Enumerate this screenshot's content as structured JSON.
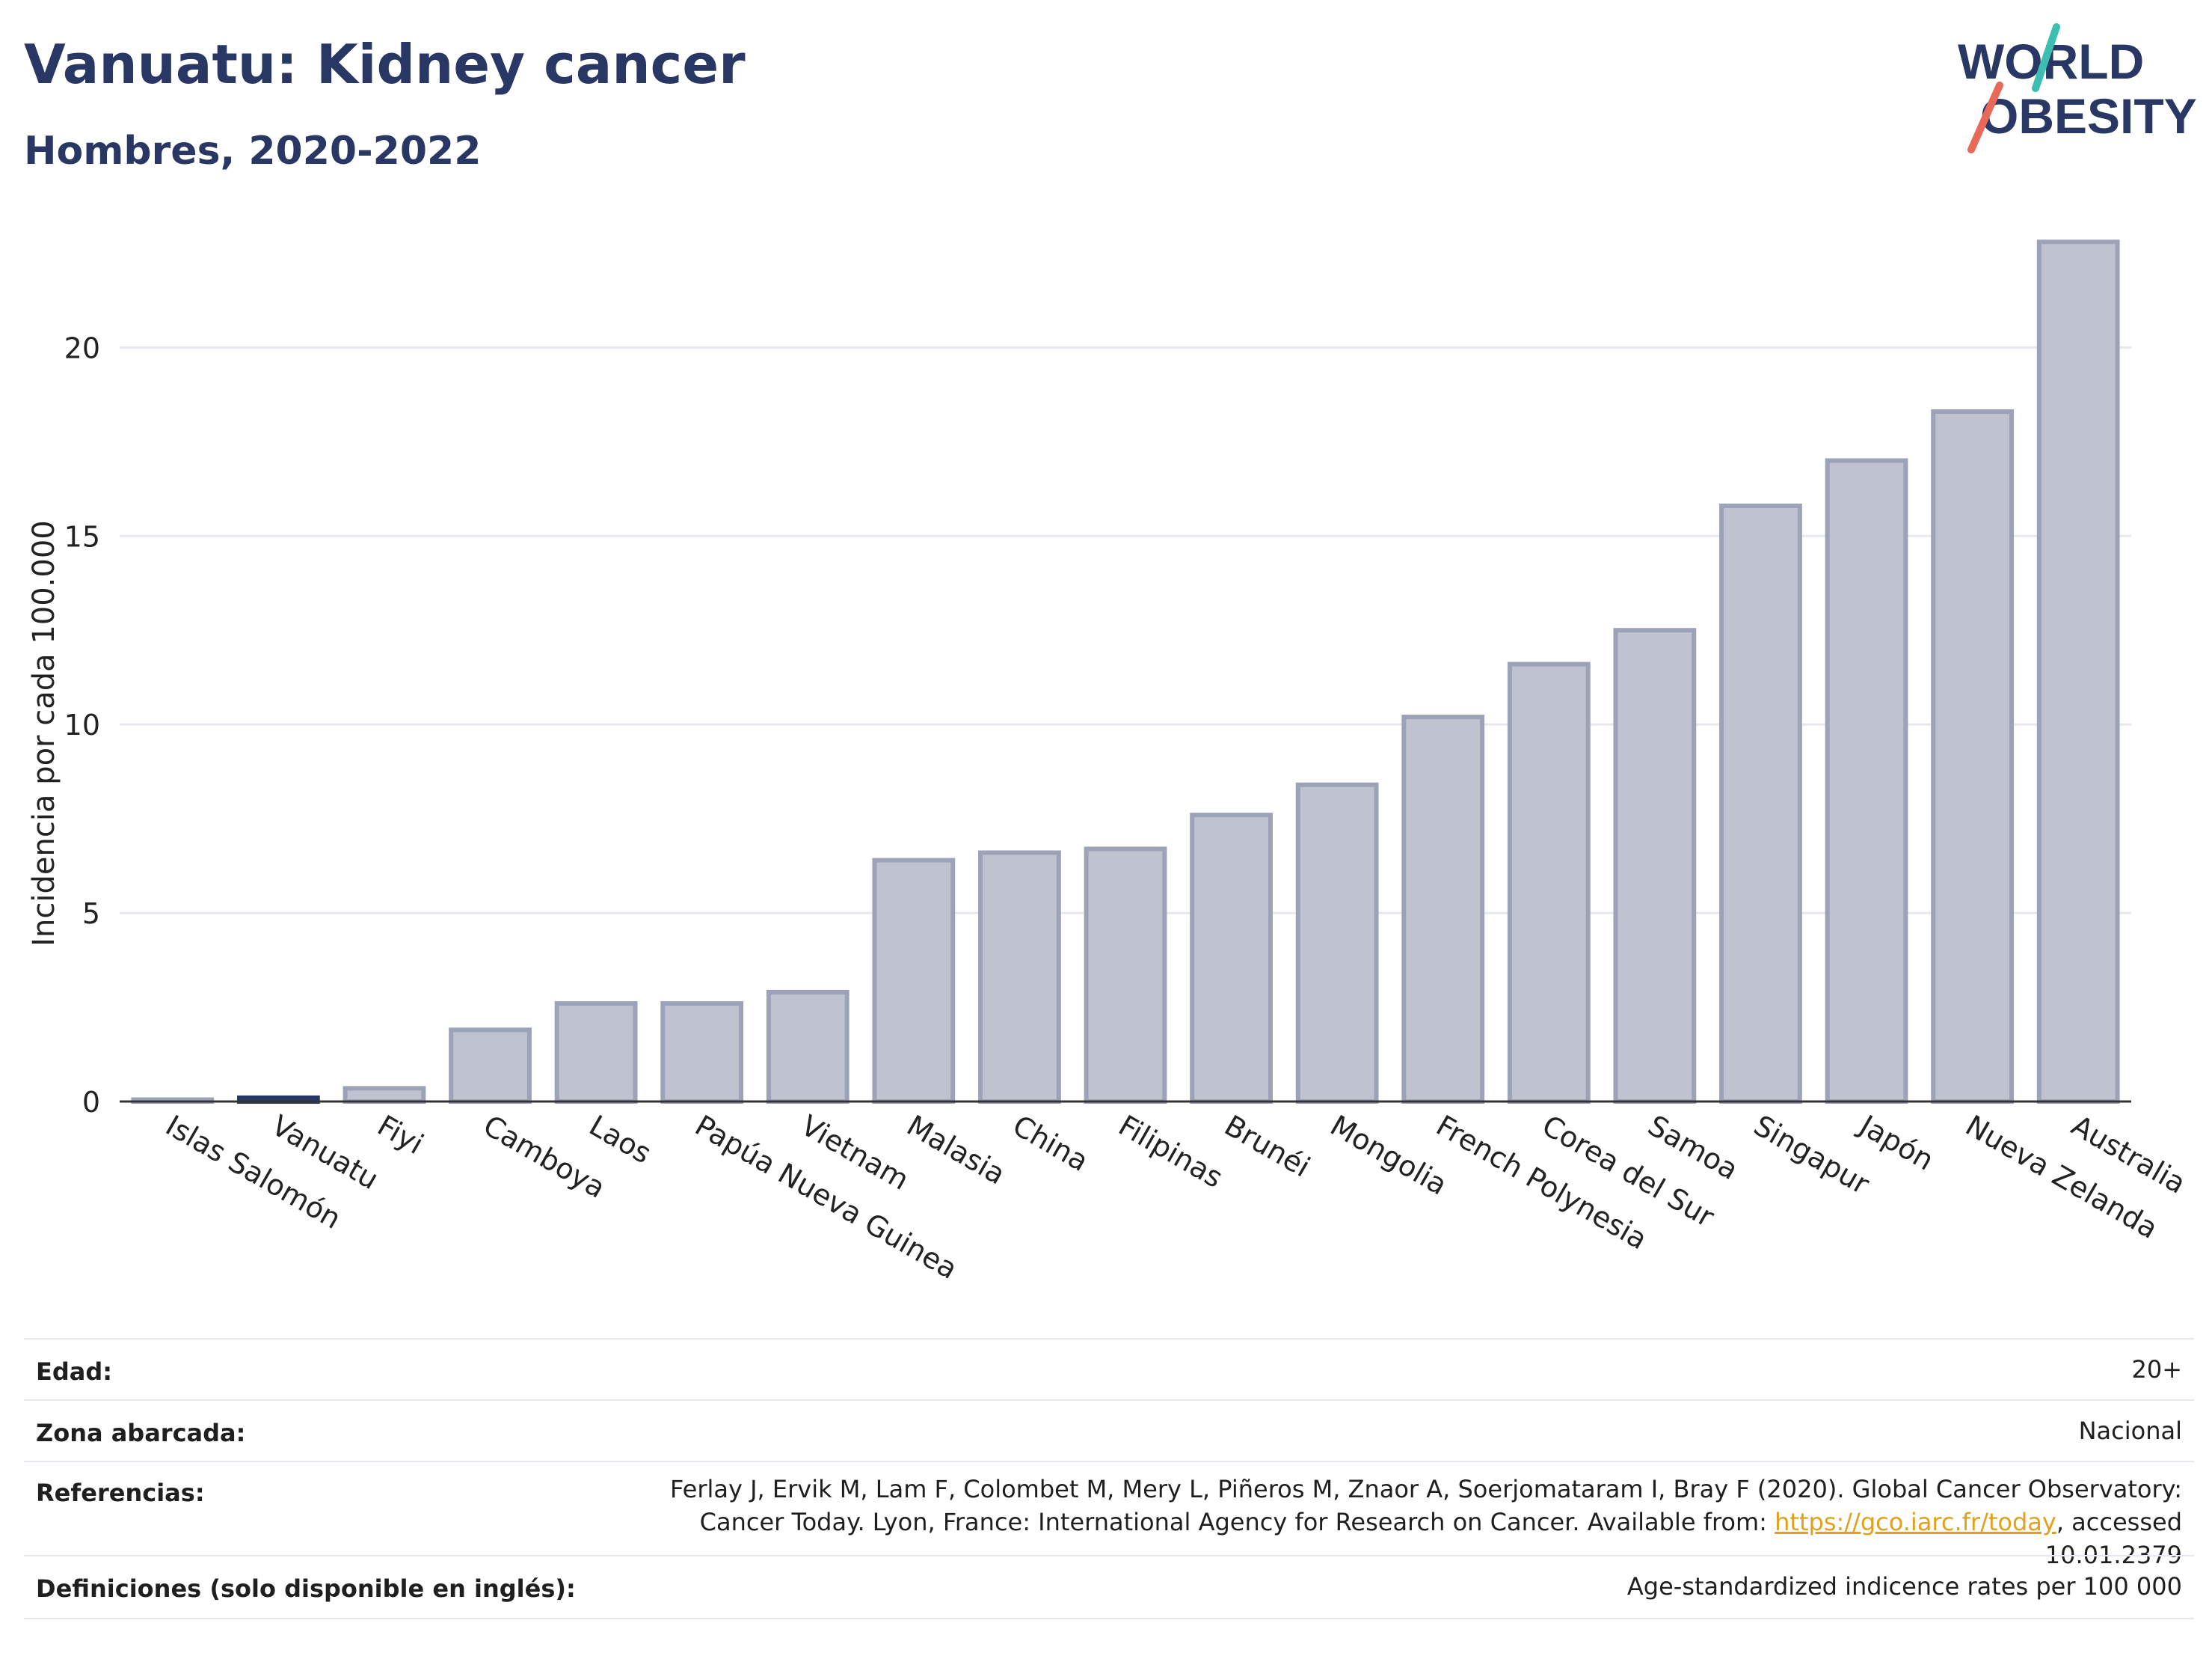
{
  "header": {
    "title": "Vanuatu: Kidney cancer",
    "subtitle": "Hombres, 2020-2022",
    "logo_line1": "WORLD",
    "logo_line2": "OBESITY"
  },
  "colors": {
    "bar": "#bfc3d0",
    "bar_stroke": "#9ca2b8",
    "highlight": "#283763",
    "title": "#283763",
    "link": "#e0a21c",
    "logo_teal": "#3cbfb0",
    "logo_coral": "#e8685a"
  },
  "chart_data": {
    "type": "bar",
    "ylabel": "Incidencia por cada 100.000",
    "xlabel": "",
    "ylim": [
      0,
      23.5
    ],
    "yticks": [
      0,
      5,
      10,
      15,
      20
    ],
    "grid": true,
    "highlight": "Vanuatu",
    "categories": [
      "Islas Salomón",
      "Vanuatu",
      "Fiyi",
      "Camboya",
      "Laos",
      "Papúa Nueva Guinea",
      "Vietnam",
      "Malasia",
      "China",
      "Filipinas",
      "Brunéi",
      "Mongolia",
      "French Polynesia",
      "Corea del Sur",
      "Samoa",
      "Singapur",
      "Japón",
      "Nueva Zelanda",
      "Australia"
    ],
    "values": [
      0.05,
      0.1,
      0.35,
      1.9,
      2.6,
      2.6,
      2.9,
      6.4,
      6.6,
      6.7,
      7.6,
      8.4,
      10.2,
      11.6,
      12.5,
      15.8,
      17.0,
      18.3,
      22.8
    ]
  },
  "meta": {
    "rows": [
      {
        "label": "Edad:",
        "value": "20+"
      },
      {
        "label": "Zona abarcada:",
        "value": "Nacional"
      },
      {
        "label": "Referencias:",
        "value_pre": "Ferlay J, Ervik M, Lam F, Colombet M, Mery L, Piñeros M, Znaor A, Soerjomataram I, Bray F (2020). Global Cancer Observatory: Cancer Today. Lyon, France: International Agency for Research on Cancer. Available from: ",
        "link": "https://gco.iarc.fr/today",
        "value_post": ", accessed 10.01.2379"
      },
      {
        "label": "Definiciones (solo disponible en inglés):",
        "value": "Age-standardized indicence rates per 100 000"
      }
    ]
  }
}
